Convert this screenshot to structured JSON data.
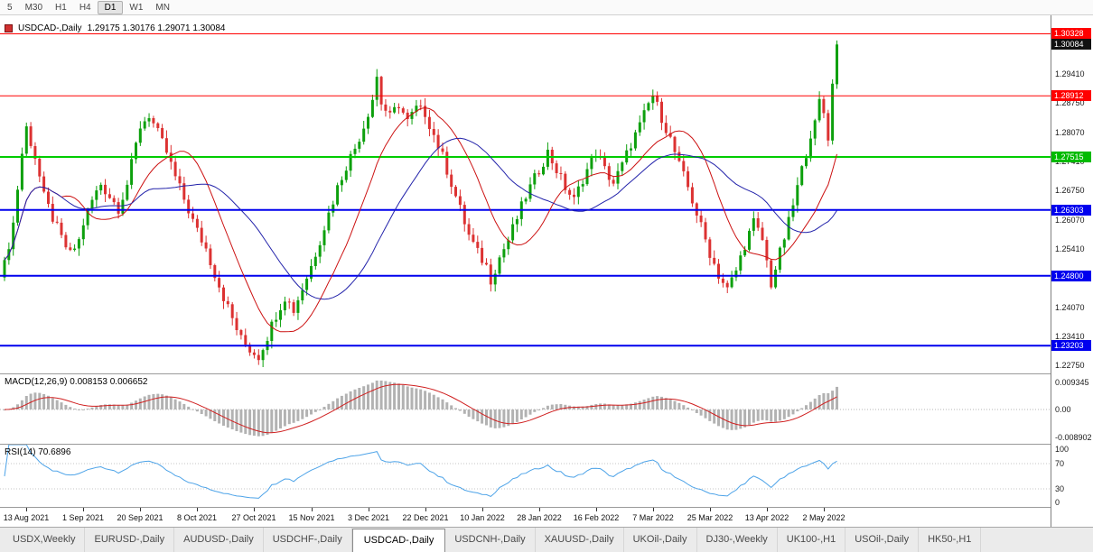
{
  "toolbar": {
    "timeframes": [
      {
        "label": "5",
        "active": false
      },
      {
        "label": "M30",
        "active": false
      },
      {
        "label": "H1",
        "active": false
      },
      {
        "label": "H4",
        "active": false
      },
      {
        "label": "D1",
        "active": true
      },
      {
        "label": "W1",
        "active": false
      },
      {
        "label": "MN",
        "active": false
      }
    ]
  },
  "chart_data": {
    "type": "candlestick",
    "symbol": "USDCAD-",
    "timeframe": "Daily",
    "title": {
      "symbol": "USDCAD-,Daily",
      "ohlc": "1.29175 1.30176 1.29071 1.30084"
    },
    "bars": 191,
    "last_bar": {
      "open": 1.29175,
      "high": 1.30176,
      "low": 1.29071,
      "close": 1.30084
    },
    "price_range": {
      "top": 1.3075,
      "bottom": 1.2255
    },
    "close_anchors": [
      [
        0,
        1.2505
      ],
      [
        2,
        1.26
      ],
      [
        4,
        1.276
      ],
      [
        5,
        1.2818
      ],
      [
        7,
        1.2752
      ],
      [
        9,
        1.266
      ],
      [
        11,
        1.2612
      ],
      [
        13,
        1.2565
      ],
      [
        15,
        1.2528
      ],
      [
        17,
        1.256
      ],
      [
        18,
        1.26
      ],
      [
        20,
        1.2652
      ],
      [
        22,
        1.269
      ],
      [
        24,
        1.2662
      ],
      [
        26,
        1.2635
      ],
      [
        28,
        1.269
      ],
      [
        30,
        1.2778
      ],
      [
        31,
        1.2822
      ],
      [
        33,
        1.2848
      ],
      [
        35,
        1.2805
      ],
      [
        37,
        1.2762
      ],
      [
        39,
        1.2705
      ],
      [
        41,
        1.2655
      ],
      [
        43,
        1.2605
      ],
      [
        44,
        1.2582
      ],
      [
        46,
        1.2542
      ],
      [
        48,
        1.2485
      ],
      [
        50,
        1.2432
      ],
      [
        52,
        1.2382
      ],
      [
        54,
        1.2335
      ],
      [
        56,
        1.2312
      ],
      [
        58,
        1.2296
      ],
      [
        60,
        1.2342
      ],
      [
        62,
        1.2392
      ],
      [
        64,
        1.2432
      ],
      [
        66,
        1.2402
      ],
      [
        68,
        1.2452
      ],
      [
        70,
        1.2502
      ],
      [
        72,
        1.2562
      ],
      [
        74,
        1.2622
      ],
      [
        76,
        1.2682
      ],
      [
        78,
        1.2732
      ],
      [
        80,
        1.2772
      ],
      [
        82,
        1.2822
      ],
      [
        84,
        1.2885
      ],
      [
        85,
        1.2935
      ],
      [
        86,
        1.2875
      ],
      [
        88,
        1.2842
      ],
      [
        90,
        1.2872
      ],
      [
        92,
        1.2832
      ],
      [
        94,
        1.2862
      ],
      [
        96,
        1.2852
      ],
      [
        98,
        1.2802
      ],
      [
        100,
        1.2752
      ],
      [
        102,
        1.2692
      ],
      [
        104,
        1.2632
      ],
      [
        106,
        1.2572
      ],
      [
        108,
        1.2532
      ],
      [
        110,
        1.2502
      ],
      [
        111,
        1.2472
      ],
      [
        113,
        1.2522
      ],
      [
        115,
        1.2562
      ],
      [
        117,
        1.2612
      ],
      [
        119,
        1.2662
      ],
      [
        121,
        1.2702
      ],
      [
        122,
        1.2722
      ],
      [
        124,
        1.2762
      ],
      [
        126,
        1.2722
      ],
      [
        128,
        1.2682
      ],
      [
        130,
        1.2652
      ],
      [
        132,
        1.2702
      ],
      [
        134,
        1.2742
      ],
      [
        135,
        1.2762
      ],
      [
        137,
        1.2722
      ],
      [
        139,
        1.2692
      ],
      [
        141,
        1.2732
      ],
      [
        143,
        1.2782
      ],
      [
        145,
        1.2822
      ],
      [
        147,
        1.2872
      ],
      [
        148,
        1.2892
      ],
      [
        150,
        1.2842
      ],
      [
        152,
        1.2792
      ],
      [
        154,
        1.2732
      ],
      [
        156,
        1.2682
      ],
      [
        158,
        1.2622
      ],
      [
        160,
        1.2562
      ],
      [
        161,
        1.2532
      ],
      [
        163,
        1.2482
      ],
      [
        165,
        1.2448
      ],
      [
        167,
        1.2492
      ],
      [
        169,
        1.2552
      ],
      [
        171,
        1.2602
      ],
      [
        173,
        1.2562
      ],
      [
        175,
        1.2462
      ],
      [
        177,
        1.2532
      ],
      [
        179,
        1.2602
      ],
      [
        181,
        1.2682
      ],
      [
        183,
        1.2762
      ],
      [
        185,
        1.2832
      ],
      [
        186,
        1.2882
      ],
      [
        187,
        1.2852
      ],
      [
        188,
        1.2792
      ],
      [
        189,
        1.2918
      ],
      [
        190,
        1.30084
      ]
    ],
    "moving_averages": [
      {
        "name": "ma-fast",
        "period": 14,
        "color": "#cc1111"
      },
      {
        "name": "ma-slow",
        "period": 30,
        "color": "#2222aa"
      }
    ],
    "hlines": [
      {
        "price": 1.30328,
        "color": "#ff0000",
        "width": 1
      },
      {
        "price": 1.28912,
        "color": "#ff0000",
        "width": 1
      },
      {
        "price": 1.27515,
        "color": "#00cc00",
        "width": 2
      },
      {
        "price": 1.26303,
        "color": "#0000ee",
        "width": 2
      },
      {
        "price": 1.248,
        "color": "#0000ee",
        "width": 2
      },
      {
        "price": 1.23203,
        "color": "#0000ee",
        "width": 2
      }
    ],
    "price_axis": {
      "plain_labels": [
        "1.29410",
        "1.28750",
        "1.28070",
        "1.27410",
        "1.26750",
        "1.26070",
        "1.25410",
        "1.24070",
        "1.23410",
        "1.22750"
      ],
      "badges": [
        {
          "text": "1.30328",
          "bg": "#ff0000"
        },
        {
          "text": "1.30084",
          "bg": "#111111"
        },
        {
          "text": "1.28912",
          "bg": "#ff0000"
        },
        {
          "text": "1.27515",
          "bg": "#00bb00"
        },
        {
          "text": "1.26303",
          "bg": "#0000ee"
        },
        {
          "text": "1.24800",
          "bg": "#0000ee"
        },
        {
          "text": "1.23203",
          "bg": "#0000ee"
        }
      ]
    },
    "macd": {
      "label": "MACD(12,26,9) 0.008153 0.006652",
      "fast": 12,
      "slow": 26,
      "signal": 9,
      "axis": [
        "0.009345",
        "0.00",
        "-0.008902"
      ]
    },
    "rsi": {
      "label": "RSI(14) 70.6896",
      "period": 14,
      "levels": [
        70,
        30
      ],
      "axis": [
        "100",
        "70",
        "30",
        "0"
      ]
    },
    "dates": {
      "labels": [
        "13 Aug 2021",
        "1 Sep 2021",
        "20 Sep 2021",
        "8 Oct 2021",
        "27 Oct 2021",
        "15 Nov 2021",
        "3 Dec 2021",
        "22 Dec 2021",
        "10 Jan 2022",
        "28 Jan 2022",
        "16 Feb 2022",
        "7 Mar 2022",
        "25 Mar 2022",
        "13 Apr 2022",
        "2 May 2022"
      ],
      "first_bar": 5,
      "bar_step": 13
    }
  },
  "tabs": [
    {
      "label": "USDX,Weekly",
      "active": false
    },
    {
      "label": "EURUSD-,Daily",
      "active": false
    },
    {
      "label": "AUDUSD-,Daily",
      "active": false
    },
    {
      "label": "USDCHF-,Daily",
      "active": false
    },
    {
      "label": "USDCAD-,Daily",
      "active": true
    },
    {
      "label": "USDCNH-,Daily",
      "active": false
    },
    {
      "label": "XAUUSD-,Daily",
      "active": false
    },
    {
      "label": "UKOil-,Daily",
      "active": false
    },
    {
      "label": "DJ30-,Weekly",
      "active": false
    },
    {
      "label": "UK100-,H1",
      "active": false
    },
    {
      "label": "USOil-,Daily",
      "active": false
    },
    {
      "label": "HK50-,H1",
      "active": false
    }
  ],
  "colors": {
    "candle_up": "#0da00d",
    "candle_down": "#dc3232",
    "macd_histogram": "#b2b2b2",
    "macd_signal": "#d02020",
    "rsi_line": "#4da3e8",
    "current_price_bg": "#111111"
  }
}
